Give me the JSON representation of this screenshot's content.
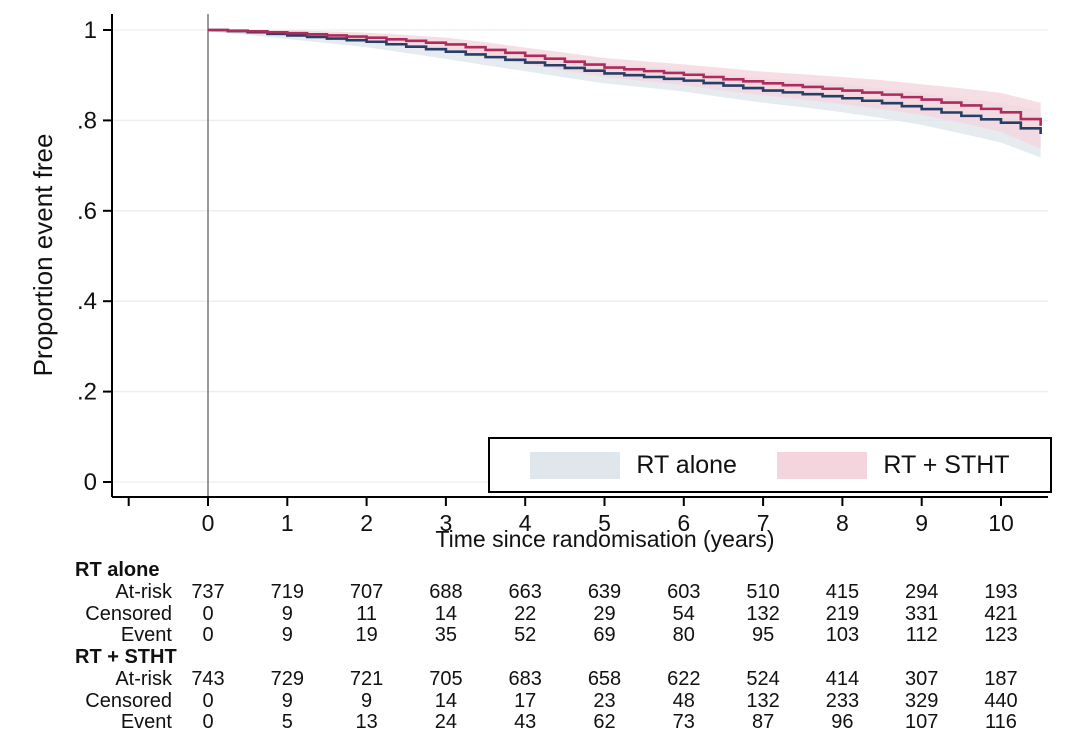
{
  "figure": {
    "background": "#ffffff"
  },
  "chart_data": {
    "type": "line",
    "subtype": "kaplan-meier-step",
    "title": "",
    "xlabel": "Time since randomisation (years)",
    "ylabel": "Proportion event free",
    "xlim": [
      -1.2,
      10.55
    ],
    "ylim": [
      0,
      1
    ],
    "grid": "horizontal",
    "x_ticks": [
      {
        "value": -1,
        "label": ""
      },
      {
        "value": 0,
        "label": "0"
      },
      {
        "value": 1,
        "label": "1"
      },
      {
        "value": 2,
        "label": "2"
      },
      {
        "value": 3,
        "label": "3"
      },
      {
        "value": 4,
        "label": "4"
      },
      {
        "value": 5,
        "label": "5"
      },
      {
        "value": 6,
        "label": "6"
      },
      {
        "value": 7,
        "label": "7"
      },
      {
        "value": 8,
        "label": "8"
      },
      {
        "value": 9,
        "label": "9"
      },
      {
        "value": 10,
        "label": "10"
      }
    ],
    "y_ticks": [
      {
        "value": 0,
        "label": "0"
      },
      {
        "value": 0.2,
        "label": ".2"
      },
      {
        "value": 0.4,
        "label": ".4"
      },
      {
        "value": 0.6,
        "label": ".6"
      },
      {
        "value": 0.8,
        "label": ".8"
      },
      {
        "value": 1,
        "label": "1"
      }
    ],
    "reference_line_x": 0,
    "series": [
      {
        "name": "RT alone",
        "line_color": "#263f66",
        "band_color": "#dfe6ec",
        "x": [
          0,
          0.5,
          1,
          1.5,
          2,
          2.5,
          3,
          3.5,
          4,
          4.5,
          5,
          5.5,
          6,
          6.5,
          7,
          7.5,
          8,
          8.5,
          9,
          9.5,
          10,
          10.5
        ],
        "y": [
          1.0,
          0.995,
          0.988,
          0.981,
          0.974,
          0.963,
          0.952,
          0.94,
          0.928,
          0.916,
          0.904,
          0.896,
          0.888,
          0.877,
          0.866,
          0.858,
          0.849,
          0.838,
          0.825,
          0.81,
          0.795,
          0.77
        ],
        "ci": [
          0.003,
          0.006,
          0.008,
          0.01,
          0.012,
          0.014,
          0.016,
          0.018,
          0.019,
          0.021,
          0.022,
          0.023,
          0.024,
          0.026,
          0.027,
          0.029,
          0.031,
          0.033,
          0.035,
          0.039,
          0.044,
          0.052
        ]
      },
      {
        "name": "RT + STHT",
        "line_color": "#ae2b5c",
        "band_color": "#f4d5de",
        "x": [
          0,
          0.5,
          1,
          1.5,
          2,
          2.5,
          3,
          3.5,
          4,
          4.5,
          5,
          5.5,
          6,
          6.5,
          7,
          7.5,
          8,
          8.5,
          9,
          9.5,
          10,
          10.5
        ],
        "y": [
          1.0,
          0.997,
          0.993,
          0.988,
          0.983,
          0.976,
          0.968,
          0.956,
          0.943,
          0.93,
          0.917,
          0.909,
          0.901,
          0.891,
          0.882,
          0.874,
          0.866,
          0.857,
          0.846,
          0.833,
          0.818,
          0.788
        ],
        "ci": [
          0.003,
          0.005,
          0.007,
          0.009,
          0.011,
          0.013,
          0.015,
          0.017,
          0.018,
          0.02,
          0.021,
          0.022,
          0.023,
          0.025,
          0.026,
          0.028,
          0.03,
          0.032,
          0.034,
          0.038,
          0.043,
          0.051
        ]
      }
    ],
    "colors": {
      "axis": "#000000",
      "grid": "#e9eef1",
      "reference_line": "#808080"
    }
  },
  "legend": {
    "entries": [
      {
        "label": "RT alone",
        "swatch_color": "#dfe6ec"
      },
      {
        "label": "RT + STHT",
        "swatch_color": "#f4d5de"
      }
    ]
  },
  "risk_table": {
    "groups": [
      {
        "name": "RT alone",
        "rows": [
          {
            "label": "At-risk",
            "values": [
              737,
              719,
              707,
              688,
              663,
              639,
              603,
              510,
              415,
              294,
              193
            ]
          },
          {
            "label": "Censored",
            "values": [
              0,
              9,
              11,
              14,
              22,
              29,
              54,
              132,
              219,
              331,
              421
            ]
          },
          {
            "label": "Event",
            "values": [
              0,
              9,
              19,
              35,
              52,
              69,
              80,
              95,
              103,
              112,
              123
            ]
          }
        ]
      },
      {
        "name": "RT + STHT",
        "rows": [
          {
            "label": "At-risk",
            "values": [
              743,
              729,
              721,
              705,
              683,
              658,
              622,
              524,
              414,
              307,
              187
            ]
          },
          {
            "label": "Censored",
            "values": [
              0,
              9,
              9,
              14,
              17,
              23,
              48,
              132,
              233,
              329,
              440
            ]
          },
          {
            "label": "Event",
            "values": [
              0,
              5,
              13,
              24,
              43,
              62,
              73,
              87,
              96,
              107,
              116
            ]
          }
        ]
      }
    ]
  }
}
